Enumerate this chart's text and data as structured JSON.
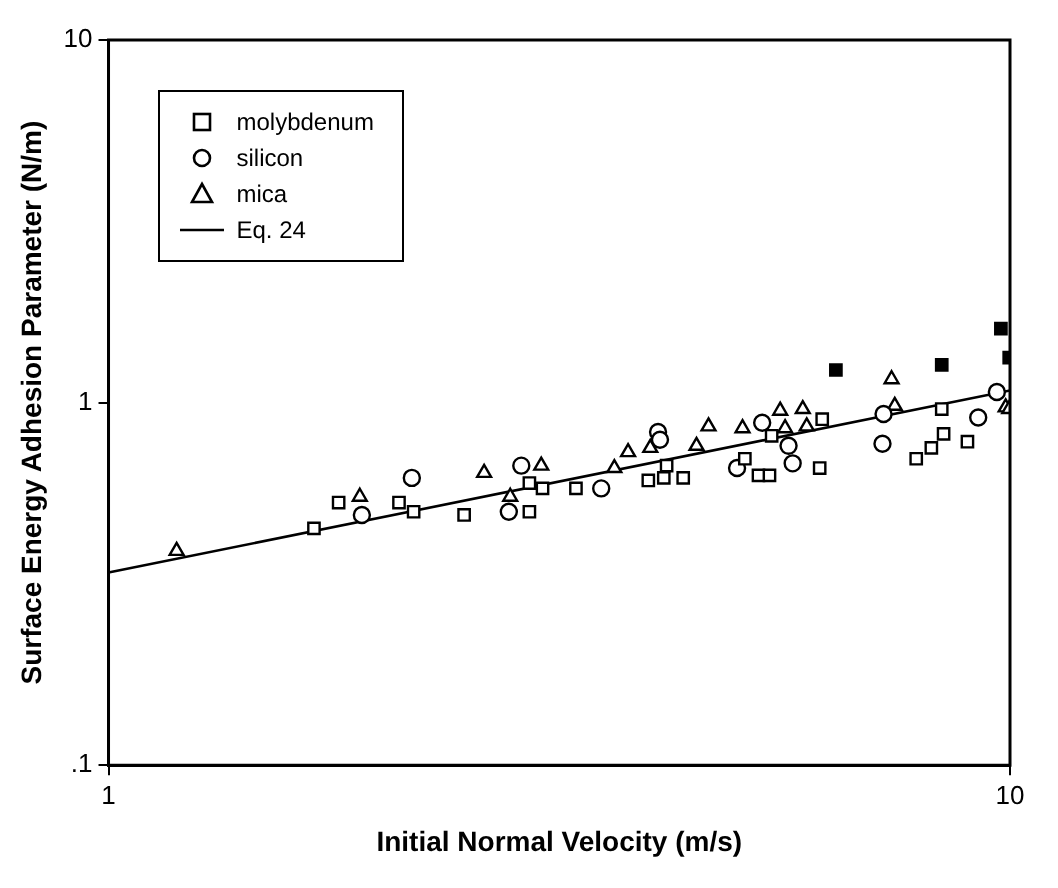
{
  "chart_data": {
    "type": "scatter",
    "xlabel": "Initial Normal Velocity (m/s)",
    "ylabel": "Surface Energy Adhesion Parameter (N/m)",
    "log": "xy",
    "xlim": [
      1,
      10
    ],
    "ylim": [
      0.1,
      10
    ],
    "xticks": [
      1,
      10
    ],
    "yticks": [
      {
        "value": 0.1,
        "label": ".1"
      },
      1,
      10
    ],
    "grid": false,
    "legend": "top left",
    "series": [
      {
        "name": "molybdenum",
        "color": "#000000",
        "marker": "square",
        "x": [
          1.69,
          1.8,
          2.1,
          2.18,
          2.48,
          2.93,
          2.93,
          3.03,
          3.3,
          3.97,
          4.13,
          4.34,
          4.16,
          5.08,
          5.26,
          5.41,
          5.44,
          6.15,
          6.19,
          8.4,
          8.44,
          8.18,
          7.87,
          8.97
        ],
        "values": [
          0.45,
          0.53,
          0.53,
          0.5,
          0.49,
          0.5,
          0.6,
          0.58,
          0.58,
          0.61,
          0.62,
          0.62,
          0.67,
          0.7,
          0.63,
          0.63,
          0.81,
          0.66,
          0.9,
          0.96,
          0.82,
          0.75,
          0.7,
          0.78
        ]
      },
      {
        "name": "silicon",
        "color": "#000000",
        "marker": "circle",
        "x": [
          1.91,
          2.17,
          2.78,
          2.87,
          3.52,
          4.07,
          4.09,
          4.98,
          5.31,
          5.68,
          5.74,
          7.24,
          7.22,
          9.22,
          9.67
        ],
        "values": [
          0.49,
          0.62,
          0.5,
          0.67,
          0.58,
          0.83,
          0.79,
          0.66,
          0.88,
          0.76,
          0.68,
          0.93,
          0.77,
          0.91,
          1.07
        ]
      },
      {
        "name": "mica",
        "color": "#000000",
        "marker": "triangle",
        "x": [
          1.19,
          1.9,
          2.61,
          2.79,
          3.02,
          3.64,
          3.77,
          3.99,
          4.49,
          4.63,
          5.05,
          5.56,
          5.63,
          5.89,
          5.95,
          7.39,
          7.45,
          9.89,
          9.98
        ],
        "values": [
          0.39,
          0.55,
          0.64,
          0.55,
          0.67,
          0.66,
          0.73,
          0.75,
          0.76,
          0.86,
          0.85,
          0.95,
          0.85,
          0.96,
          0.86,
          1.16,
          0.98,
          0.97,
          0.96
        ]
      },
      {
        "color": "#000000",
        "marker": "square",
        "x": [
          6.41,
          8.4,
          9.77,
          9.98
        ],
        "values": [
          1.23,
          1.27,
          1.6,
          1.33
        ]
      },
      {
        "name": "Eq. 24",
        "type": "line",
        "color": "#000000",
        "marker": "none",
        "line_style": "solid",
        "x": [
          1,
          10
        ],
        "values": [
          0.34,
          1.08
        ]
      }
    ]
  }
}
